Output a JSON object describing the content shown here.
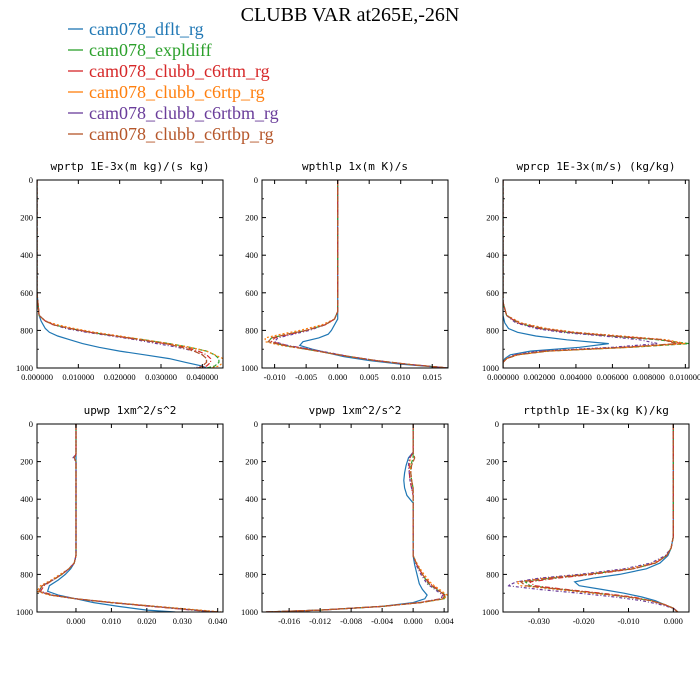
{
  "title": "CLUBB VAR at265E,-26N",
  "legend": [
    {
      "name": "cam078_dflt_rg",
      "color": "#1f77b4"
    },
    {
      "name": "cam078_expldiff",
      "color": "#2ca02c"
    },
    {
      "name": "cam078_clubb_c6rtm_rg",
      "color": "#d62728"
    },
    {
      "name": "cam078_clubb_c6rtp_rg",
      "color": "#ff7f0e"
    },
    {
      "name": "cam078_clubb_c6rtbm_rg",
      "color": "#6a3d9a"
    },
    {
      "name": "cam078_clubb_c6rtbp_rg",
      "color": "#b5562a"
    }
  ],
  "chart_data": [
    {
      "type": "line",
      "title": "wprtp  1E-3x(m kg)/(s kg)",
      "xlim": [
        0,
        0.045
      ],
      "ylim": [
        1000,
        0
      ],
      "xticks": [
        "0.000000",
        "0.010000",
        "0.020000",
        "0.030000",
        "0.040000"
      ],
      "xtick_values": [
        0,
        0.01,
        0.02,
        0.03,
        0.04
      ],
      "yticks": [
        "0",
        "200",
        "400",
        "600",
        "800",
        "1000"
      ],
      "y": [
        0,
        600,
        720,
        750,
        770,
        790,
        810,
        830,
        850,
        870,
        890,
        910,
        930,
        950,
        970,
        990,
        1000
      ],
      "series": [
        {
          "values": [
            0.0,
            0.0,
            0.0005,
            0.001,
            0.0015,
            0.002,
            0.003,
            0.005,
            0.008,
            0.011,
            0.015,
            0.02,
            0.026,
            0.032,
            0.036,
            0.04,
            0.041
          ]
        },
        {
          "values": [
            0.0,
            0.0,
            0.0005,
            0.002,
            0.004,
            0.008,
            0.013,
            0.019,
            0.026,
            0.032,
            0.037,
            0.041,
            0.043,
            0.044,
            0.044,
            0.043,
            0.041
          ]
        },
        {
          "values": [
            0.0,
            0.0,
            0.0005,
            0.002,
            0.004,
            0.008,
            0.013,
            0.019,
            0.025,
            0.031,
            0.036,
            0.039,
            0.041,
            0.042,
            0.042,
            0.041,
            0.039
          ]
        },
        {
          "values": [
            0.0,
            0.0,
            0.0005,
            0.002,
            0.005,
            0.009,
            0.014,
            0.02,
            0.026,
            0.032,
            0.037,
            0.041,
            0.043,
            0.045,
            0.045,
            0.044,
            0.042
          ]
        },
        {
          "values": [
            0.0,
            0.0,
            0.0005,
            0.002,
            0.004,
            0.007,
            0.012,
            0.018,
            0.024,
            0.029,
            0.034,
            0.038,
            0.04,
            0.041,
            0.041,
            0.04,
            0.038
          ]
        },
        {
          "values": [
            0.0,
            0.0,
            0.0005,
            0.002,
            0.004,
            0.008,
            0.013,
            0.019,
            0.025,
            0.031,
            0.035,
            0.038,
            0.04,
            0.041,
            0.041,
            0.04,
            0.039
          ]
        }
      ]
    },
    {
      "type": "line",
      "title": "wpthlp  1x(m K)/s",
      "xlim": [
        -0.012,
        0.0175
      ],
      "ylim": [
        1000,
        0
      ],
      "xticks": [
        "-0.010",
        "-0.005",
        "0.000",
        "0.005",
        "0.010",
        "0.015"
      ],
      "xtick_values": [
        -0.01,
        -0.005,
        0,
        0.005,
        0.01,
        0.015
      ],
      "yticks": [
        "0",
        "200",
        "400",
        "600",
        "800",
        "1000"
      ],
      "y": [
        0,
        700,
        740,
        770,
        800,
        820,
        840,
        860,
        880,
        900,
        920,
        940,
        960,
        980,
        1000
      ],
      "series": [
        {
          "values": [
            0.0,
            0.0,
            0.0,
            -0.0005,
            -0.001,
            -0.0015,
            -0.003,
            -0.0055,
            -0.006,
            -0.004,
            -0.0015,
            0.001,
            0.005,
            0.01,
            0.0175
          ]
        },
        {
          "values": [
            0.0,
            0.0,
            -0.0005,
            -0.002,
            -0.005,
            -0.008,
            -0.0105,
            -0.011,
            -0.0085,
            -0.005,
            -0.0015,
            0.002,
            0.006,
            0.011,
            0.0175
          ]
        },
        {
          "values": [
            0.0,
            0.0,
            -0.0005,
            -0.002,
            -0.005,
            -0.0075,
            -0.01,
            -0.0105,
            -0.008,
            -0.0045,
            -0.0015,
            0.002,
            0.006,
            0.011,
            0.0175
          ]
        },
        {
          "values": [
            0.0,
            0.0,
            -0.0005,
            -0.0025,
            -0.006,
            -0.009,
            -0.0115,
            -0.0115,
            -0.009,
            -0.005,
            -0.0015,
            0.002,
            0.006,
            0.011,
            0.0175
          ]
        },
        {
          "values": [
            0.0,
            0.0,
            -0.0005,
            -0.002,
            -0.0045,
            -0.007,
            -0.0095,
            -0.01,
            -0.008,
            -0.0045,
            -0.001,
            0.002,
            0.006,
            0.011,
            0.0175
          ]
        },
        {
          "values": [
            0.0,
            0.0,
            -0.0005,
            -0.002,
            -0.005,
            -0.008,
            -0.0105,
            -0.011,
            -0.0085,
            -0.005,
            -0.0015,
            0.002,
            0.006,
            0.011,
            0.0175
          ]
        }
      ]
    },
    {
      "type": "line",
      "title": "wprcp  1E-3x(m/s) (kg/kg)",
      "xlim": [
        0,
        0.0102
      ],
      "ylim": [
        1000,
        0
      ],
      "xticks": [
        "0.000000",
        "0.002000",
        "0.004000",
        "0.006000",
        "0.008000",
        "0.010000"
      ],
      "xtick_values": [
        0,
        0.002,
        0.004,
        0.006,
        0.008,
        0.01
      ],
      "yticks": [
        "0",
        "200",
        "400",
        "600",
        "800",
        "1000"
      ],
      "y": [
        0,
        650,
        720,
        760,
        790,
        810,
        830,
        850,
        870,
        890,
        910,
        930,
        950,
        970,
        1000
      ],
      "series": [
        {
          "values": [
            0.0,
            0.0,
            0.0,
            0.0001,
            0.0003,
            0.0008,
            0.0018,
            0.0035,
            0.0058,
            0.0042,
            0.0015,
            0.0004,
            0.0001,
            0.0,
            0.0
          ]
        },
        {
          "values": [
            0.0,
            0.0,
            0.0002,
            0.0008,
            0.002,
            0.0035,
            0.0058,
            0.0085,
            0.0102,
            0.007,
            0.0025,
            0.0008,
            0.0002,
            0.0,
            0.0
          ]
        },
        {
          "values": [
            0.0,
            0.0,
            0.0002,
            0.0008,
            0.002,
            0.0036,
            0.006,
            0.0088,
            0.0098,
            0.0065,
            0.0022,
            0.0007,
            0.0002,
            0.0,
            0.0
          ]
        },
        {
          "values": [
            0.0,
            0.0,
            0.0002,
            0.001,
            0.0024,
            0.004,
            0.0065,
            0.009,
            0.01,
            0.007,
            0.0025,
            0.0008,
            0.0002,
            0.0,
            0.0
          ]
        },
        {
          "values": [
            0.0,
            0.0,
            0.0002,
            0.0007,
            0.0018,
            0.0032,
            0.0055,
            0.0075,
            0.0085,
            0.006,
            0.002,
            0.0006,
            0.0002,
            0.0,
            0.0
          ]
        },
        {
          "values": [
            0.0,
            0.0,
            0.0002,
            0.0009,
            0.0022,
            0.0038,
            0.0062,
            0.0088,
            0.0095,
            0.0068,
            0.0024,
            0.0008,
            0.0002,
            0.0,
            0.0
          ]
        }
      ]
    },
    {
      "type": "line",
      "title": "upwp  1xm^2/s^2",
      "xlim": [
        -0.011,
        0.0415
      ],
      "ylim": [
        1000,
        0
      ],
      "xticks": [
        "0.000",
        "0.010",
        "0.020",
        "0.030",
        "0.040"
      ],
      "xtick_values": [
        0,
        0.01,
        0.02,
        0.03,
        0.04
      ],
      "yticks": [
        "0",
        "200",
        "400",
        "600",
        "800",
        "1000"
      ],
      "y": [
        0,
        160,
        180,
        200,
        700,
        740,
        770,
        800,
        830,
        860,
        890,
        910,
        930,
        950,
        970,
        990,
        1000
      ],
      "series": [
        {
          "values": [
            0.0,
            0.0,
            0.0,
            0.0,
            0.0,
            -0.0005,
            -0.0015,
            -0.003,
            -0.005,
            -0.0075,
            -0.008,
            -0.005,
            0.0,
            0.005,
            0.012,
            0.02,
            0.028
          ]
        },
        {
          "values": [
            0.0,
            0.0,
            -0.0005,
            0.0,
            0.0,
            -0.0005,
            -0.002,
            -0.004,
            -0.0065,
            -0.0095,
            -0.0105,
            -0.007,
            0.0,
            0.01,
            0.022,
            0.034,
            0.04
          ]
        },
        {
          "values": [
            0.0,
            0.0,
            -0.0005,
            0.0,
            0.0,
            -0.0005,
            -0.002,
            -0.004,
            -0.0065,
            -0.009,
            -0.01,
            -0.0065,
            0.0,
            0.01,
            0.021,
            0.033,
            0.04
          ]
        },
        {
          "values": [
            0.0,
            0.0,
            -0.0005,
            0.0,
            0.0,
            -0.0005,
            -0.002,
            -0.0045,
            -0.007,
            -0.01,
            -0.011,
            -0.0075,
            0.0,
            0.011,
            0.023,
            0.035,
            0.041
          ]
        },
        {
          "values": [
            0.0,
            0.0,
            -0.0008,
            0.0,
            0.0,
            -0.0005,
            -0.002,
            -0.004,
            -0.0065,
            -0.0095,
            -0.0105,
            -0.007,
            0.0,
            0.01,
            0.022,
            0.033,
            0.04
          ]
        },
        {
          "values": [
            0.0,
            0.0,
            -0.0005,
            0.0,
            0.0,
            -0.0005,
            -0.002,
            -0.004,
            -0.0065,
            -0.0095,
            -0.0105,
            -0.007,
            0.0,
            0.01,
            0.022,
            0.034,
            0.04
          ]
        }
      ]
    },
    {
      "type": "line",
      "title": "vpwp  1xm^2/s^2",
      "xlim": [
        -0.0195,
        0.0045
      ],
      "ylim": [
        1000,
        0
      ],
      "xticks": [
        "-0.016",
        "-0.012",
        "-0.008",
        "-0.004",
        "0.000",
        "0.004"
      ],
      "xtick_values": [
        -0.016,
        -0.012,
        -0.008,
        -0.004,
        0,
        0.004
      ],
      "yticks": [
        "0",
        "200",
        "400",
        "600",
        "800",
        "1000"
      ],
      "y": [
        0,
        150,
        180,
        220,
        260,
        300,
        340,
        380,
        420,
        700,
        750,
        800,
        850,
        880,
        910,
        930,
        950,
        970,
        990,
        1000
      ],
      "series": [
        {
          "values": [
            0.0,
            0.0,
            -0.0006,
            -0.0009,
            -0.0011,
            -0.0012,
            -0.0011,
            -0.0008,
            0.0,
            0.0,
            0.0002,
            0.0005,
            0.0008,
            0.0012,
            0.0018,
            0.0015,
            0.0,
            -0.004,
            -0.012,
            -0.019
          ]
        },
        {
          "values": [
            0.0,
            0.0,
            0.0,
            -0.0003,
            -0.0003,
            -0.0002,
            0.0,
            0.0,
            0.0,
            0.0,
            0.0005,
            0.0012,
            0.002,
            0.003,
            0.0042,
            0.004,
            0.001,
            -0.004,
            -0.012,
            -0.019
          ]
        },
        {
          "values": [
            0.0,
            0.0,
            -0.0004,
            -0.0005,
            -0.0005,
            -0.0004,
            -0.0002,
            0.0,
            0.0,
            0.0,
            0.0005,
            0.0012,
            0.0022,
            0.0032,
            0.004,
            0.0035,
            0.0008,
            -0.004,
            -0.012,
            -0.019
          ]
        },
        {
          "values": [
            0.0,
            0.0,
            -0.0004,
            -0.0004,
            -0.0003,
            -0.0002,
            0.0,
            0.0,
            0.0,
            0.0,
            0.0006,
            0.0014,
            0.0024,
            0.0034,
            0.0044,
            0.004,
            0.001,
            -0.004,
            -0.012,
            -0.019
          ]
        },
        {
          "values": [
            0.0,
            0.0,
            -0.0005,
            -0.0006,
            -0.0005,
            -0.0004,
            -0.0002,
            0.0,
            0.0,
            0.0,
            0.0004,
            0.001,
            0.0018,
            0.0028,
            0.0038,
            0.0036,
            0.0008,
            -0.004,
            -0.012,
            -0.019
          ]
        },
        {
          "values": [
            0.0,
            0.0,
            0.0002,
            -0.0002,
            -0.0003,
            -0.0002,
            0.0,
            0.0,
            0.0,
            0.0,
            0.0005,
            0.0012,
            0.0021,
            0.0031,
            0.0041,
            0.0038,
            0.0009,
            -0.004,
            -0.012,
            -0.019
          ]
        }
      ]
    },
    {
      "type": "line",
      "title": "rtpthlp  1E-3x(kg K)/kg",
      "xlim": [
        -0.038,
        0.0035
      ],
      "ylim": [
        1000,
        0
      ],
      "xticks": [
        "-0.030",
        "-0.020",
        "-0.010",
        "0.000"
      ],
      "xtick_values": [
        -0.03,
        -0.02,
        -0.01,
        0
      ],
      "yticks": [
        "0",
        "200",
        "400",
        "600",
        "800",
        "1000"
      ],
      "y": [
        0,
        600,
        660,
        700,
        740,
        770,
        800,
        820,
        840,
        860,
        880,
        900,
        920,
        940,
        960,
        980,
        1000
      ],
      "series": [
        {
          "values": [
            0.0,
            0.0,
            -0.0005,
            -0.0012,
            -0.003,
            -0.006,
            -0.012,
            -0.018,
            -0.022,
            -0.021,
            -0.016,
            -0.011,
            -0.007,
            -0.004,
            -0.002,
            0.0,
            0.001
          ]
        },
        {
          "values": [
            0.0,
            0.0,
            -0.0005,
            -0.0015,
            -0.004,
            -0.009,
            -0.019,
            -0.027,
            -0.033,
            -0.032,
            -0.025,
            -0.017,
            -0.01,
            -0.005,
            -0.002,
            0.0,
            0.001
          ]
        },
        {
          "values": [
            0.0,
            0.0,
            -0.0005,
            -0.0015,
            -0.004,
            -0.009,
            -0.018,
            -0.026,
            -0.032,
            -0.031,
            -0.024,
            -0.016,
            -0.009,
            -0.005,
            -0.002,
            0.0,
            0.001
          ]
        },
        {
          "values": [
            0.0,
            0.0,
            -0.0005,
            -0.0015,
            -0.0045,
            -0.01,
            -0.02,
            -0.029,
            -0.035,
            -0.034,
            -0.026,
            -0.018,
            -0.01,
            -0.005,
            -0.002,
            0.0,
            0.001
          ]
        },
        {
          "values": [
            0.0,
            0.0,
            -0.0005,
            -0.0018,
            -0.005,
            -0.011,
            -0.021,
            -0.03,
            -0.035,
            -0.037,
            -0.03,
            -0.021,
            -0.013,
            -0.007,
            -0.003,
            0.0,
            0.001
          ]
        },
        {
          "values": [
            0.0,
            0.0,
            -0.0005,
            -0.0015,
            -0.004,
            -0.009,
            -0.019,
            -0.028,
            -0.034,
            -0.033,
            -0.025,
            -0.017,
            -0.01,
            -0.005,
            -0.002,
            0.0,
            0.001
          ]
        }
      ]
    }
  ]
}
